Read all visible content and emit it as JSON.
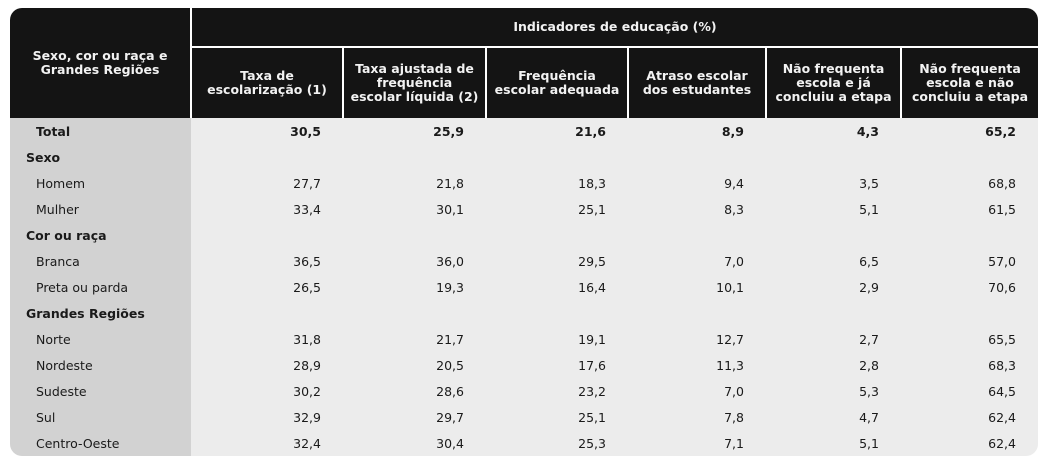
{
  "table": {
    "row_header": "Sexo, cor ou raça e Grandes Regiões",
    "group_header": "Indicadores de educação (%)",
    "columns": [
      "Taxa de escolarização (1)",
      "Taxa ajustada de frequência escolar líquida (2)",
      "Frequência escolar adequada",
      "Atraso escolar dos estudantes",
      "Não frequenta escola e já concluiu a etapa",
      "Não frequenta escola e não concluiu a etapa"
    ],
    "total": {
      "label": "Total",
      "values": [
        "30,5",
        "25,9",
        "21,6",
        "8,9",
        "4,3",
        "65,2"
      ]
    },
    "groups": [
      {
        "label": "Sexo",
        "rows": [
          {
            "label": "Homem",
            "values": [
              "27,7",
              "21,8",
              "18,3",
              "9,4",
              "3,5",
              "68,8"
            ]
          },
          {
            "label": "Mulher",
            "values": [
              "33,4",
              "30,1",
              "25,1",
              "8,3",
              "5,1",
              "61,5"
            ]
          }
        ]
      },
      {
        "label": "Cor ou raça",
        "rows": [
          {
            "label": "Branca",
            "values": [
              "36,5",
              "36,0",
              "29,5",
              "7,0",
              "6,5",
              "57,0"
            ]
          },
          {
            "label": "Preta ou parda",
            "values": [
              "26,5",
              "19,3",
              "16,4",
              "10,1",
              "2,9",
              "70,6"
            ]
          }
        ]
      },
      {
        "label": "Grandes Regiões",
        "rows": [
          {
            "label": "Norte",
            "values": [
              "31,8",
              "21,7",
              "19,1",
              "12,7",
              "2,7",
              "65,5"
            ]
          },
          {
            "label": "Nordeste",
            "values": [
              "28,9",
              "20,5",
              "17,6",
              "11,3",
              "2,8",
              "68,3"
            ]
          },
          {
            "label": "Sudeste",
            "values": [
              "30,2",
              "28,6",
              "23,2",
              "7,0",
              "5,3",
              "64,5"
            ]
          },
          {
            "label": "Sul",
            "values": [
              "32,9",
              "29,7",
              "25,1",
              "7,8",
              "4,7",
              "62,4"
            ]
          },
          {
            "label": "Centro-Oeste",
            "values": [
              "32,4",
              "30,4",
              "25,3",
              "7,1",
              "5,1",
              "62,4"
            ]
          }
        ]
      }
    ]
  }
}
